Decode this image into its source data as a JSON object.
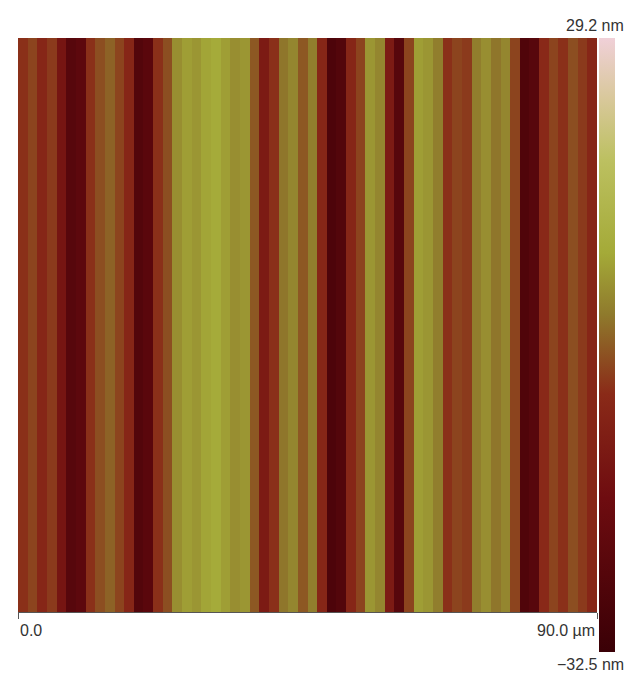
{
  "chart_data": {
    "type": "heatmap",
    "x": [
      0.75,
      2.25,
      3.75,
      5.25,
      6.75,
      8.25,
      9.75,
      11.25,
      12.75,
      14.25,
      15.75,
      17.25,
      18.75,
      20.25,
      21.75,
      23.25,
      24.75,
      26.25,
      27.75,
      29.25,
      30.75,
      32.25,
      33.75,
      35.25,
      36.75,
      38.25,
      39.75,
      41.25,
      42.75,
      44.25,
      45.75,
      47.25,
      48.75,
      50.25,
      51.75,
      53.25,
      54.75,
      56.25,
      57.75,
      59.25,
      60.75,
      62.25,
      63.75,
      65.25,
      66.75,
      68.25,
      69.75,
      71.25,
      72.75,
      74.25,
      75.75,
      77.25,
      78.75,
      80.25,
      81.75,
      83.25,
      84.75,
      86.25,
      87.75,
      89.25
    ],
    "cells": [
      [
        -6,
        -4,
        -8,
        -5,
        -14,
        -24,
        -22,
        -6,
        -3,
        -1,
        -4,
        -8,
        -25,
        -23,
        -6,
        -3,
        4,
        6,
        5,
        7,
        8,
        6,
        4,
        5,
        -2,
        -12,
        -6,
        1,
        3,
        -2,
        2,
        -8,
        -27,
        -25,
        -8,
        -4,
        5,
        3,
        -12,
        -24,
        -4,
        6,
        5,
        2,
        -6,
        -4,
        -5,
        2,
        4,
        1,
        3,
        -4,
        -26,
        -24,
        -7,
        -4,
        -6,
        -3,
        -5,
        -8
      ]
    ],
    "xlim": [
      0,
      90
    ],
    "xticks": [
      {
        "value": 0,
        "label": "0.0"
      },
      {
        "value": 90,
        "label": "90.0 µm"
      }
    ],
    "colorbar_range": [
      -32.5,
      29.2
    ],
    "colorbar_ticks": [
      {
        "value": 29.2,
        "label": "29.2 nm"
      },
      {
        "value": -32.5,
        "label": "−32.5 nm"
      }
    ],
    "tick_labels": "x"
  }
}
